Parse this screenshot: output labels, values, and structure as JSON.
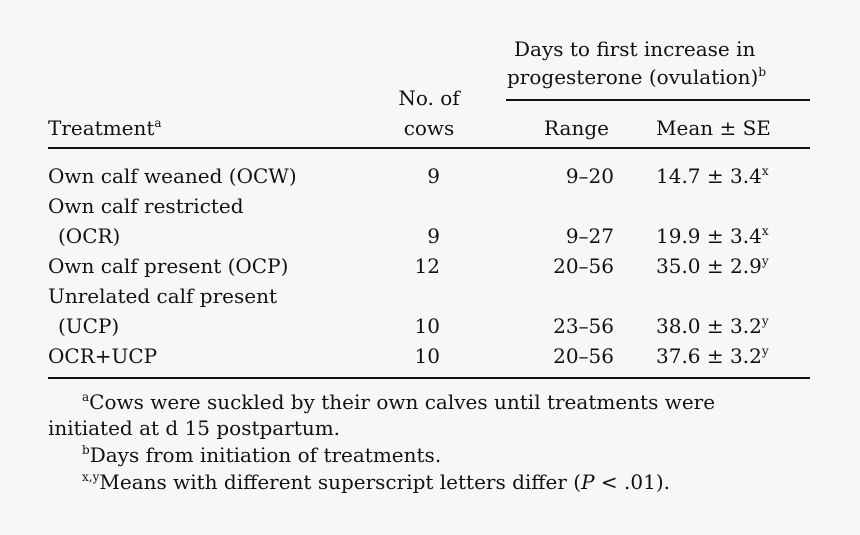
{
  "table": {
    "header": {
      "group_title_line1": "Days to first increase in",
      "group_title_line2": "progesterone (ovulation)",
      "group_title_sup": "b",
      "treatment_label": "Treatment",
      "treatment_sup": "a",
      "cows_line1": "No. of",
      "cows_line2": "cows",
      "range_label": "Range",
      "mean_label": "Mean ± SE"
    },
    "rows": [
      {
        "treatment_line1": "Own calf weaned (OCW)",
        "treatment_line2": "",
        "cows": "9",
        "range": "9–20",
        "mean": "14.7 ± 3.4",
        "sup": "x"
      },
      {
        "treatment_line1": "Own calf restricted",
        "treatment_line2": "(OCR)",
        "cows": "9",
        "range": "9–27",
        "mean": "19.9 ± 3.4",
        "sup": "x"
      },
      {
        "treatment_line1": "Own calf present (OCP)",
        "treatment_line2": "",
        "cows": "12",
        "range": "20–56",
        "mean": "35.0 ± 2.9",
        "sup": "y"
      },
      {
        "treatment_line1": "Unrelated calf present",
        "treatment_line2": "(UCP)",
        "cows": "10",
        "range": "23–56",
        "mean": "38.0 ± 3.2",
        "sup": "y"
      },
      {
        "treatment_line1": "OCR+UCP",
        "treatment_line2": "",
        "cows": "10",
        "range": "20–56",
        "mean": "37.6 ± 3.2",
        "sup": "y"
      }
    ]
  },
  "footnotes": {
    "a_sup": "a",
    "a_line1": "Cows were suckled by their own calves until treatments were",
    "a_line2": "initiated at d 15 postpartum.",
    "b_sup": "b",
    "b_text": "Days from initiation of treatments.",
    "xy_sup": "x,y",
    "xy_text_before": "Means with different superscript letters differ (",
    "xy_p": "P",
    "xy_text_after": " < .01)."
  }
}
